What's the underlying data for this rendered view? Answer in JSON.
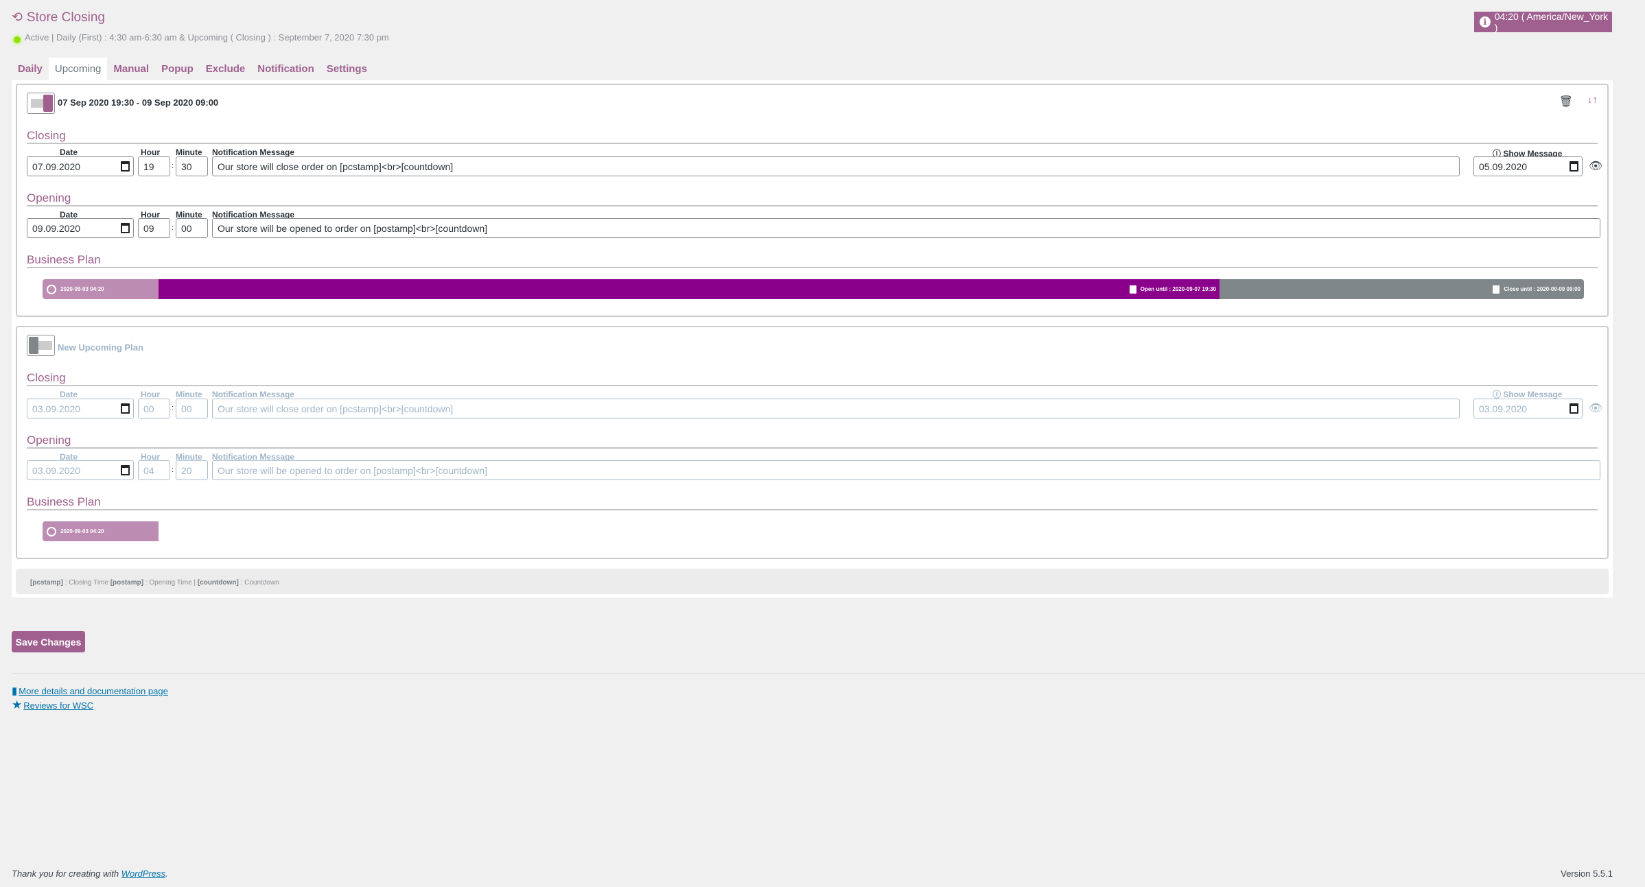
{
  "header": {
    "title": "Store Closing",
    "status": "Active | Daily (First) : 4:30 am-6:30 am & Upcoming ( Closing ) : September 7, 2020 7:30 pm",
    "status_color": "#8fe000",
    "timezone": "04:20 ( America/New_York )"
  },
  "tabs": [
    {
      "label": "Daily"
    },
    {
      "label": "Upcoming",
      "active": true
    },
    {
      "label": "Manual"
    },
    {
      "label": "Popup"
    },
    {
      "label": "Exclude"
    },
    {
      "label": "Notification"
    },
    {
      "label": "Settings"
    }
  ],
  "labels": {
    "closing": "Closing",
    "opening": "Opening",
    "business_plan": "Business Plan",
    "date": "Date",
    "hour": "Hour",
    "minute": "Minute",
    "message": "Notification Message",
    "show_message": "Show Message"
  },
  "plans": [
    {
      "enabled": true,
      "title": "07 Sep 2020 19:30 - 09 Sep 2020 09:00",
      "closing": {
        "date": "07.09.2020",
        "hour": "19",
        "minute": "30",
        "message": "Our store will close order on [pcstamp]<br>[countdown]",
        "show_date": "05.09.2020"
      },
      "opening": {
        "date": "09.09.2020",
        "hour": "09",
        "minute": "00",
        "message": "Our store will be opened to order on [postamp]<br>[countdown]"
      },
      "timeline": {
        "now": "2020-09-03 04:20",
        "open_until": "Open until : 2020-09-07 19:30",
        "close_until": "Close until : 2020-09-09 09:00"
      }
    },
    {
      "enabled": false,
      "title": "New Upcoming Plan",
      "closing": {
        "date": "03.09.2020",
        "hour": "00",
        "minute": "00",
        "message": "Our store will close order on [pcstamp]<br>[countdown]",
        "show_date": "03.09.2020"
      },
      "opening": {
        "date": "03.09.2020",
        "hour": "04",
        "minute": "20",
        "message": "Our store will be opened to order on [postamp]<br>[countdown]"
      },
      "timeline": {
        "now": "2020-09-03 04:20"
      }
    }
  ],
  "legend": {
    "k1": "[pcstamp]",
    "v1": " : Closing Time ",
    "k2": "[postamp]",
    "v2": " : Opening Time | ",
    "k3": "[countdown]",
    "v3": " : Countdown"
  },
  "save_label": "Save Changes",
  "links": {
    "docs": "More details and documentation page",
    "reviews": "Reviews for WSC"
  },
  "footer": {
    "thanks": "Thank you for creating with ",
    "wp": "WordPress",
    "dot": ".",
    "version": "Version 5.5.1"
  },
  "colors": {
    "accent": "#a0608f",
    "open": "#8b008b",
    "closed": "#80878a",
    "past": "#bc8cb3"
  }
}
